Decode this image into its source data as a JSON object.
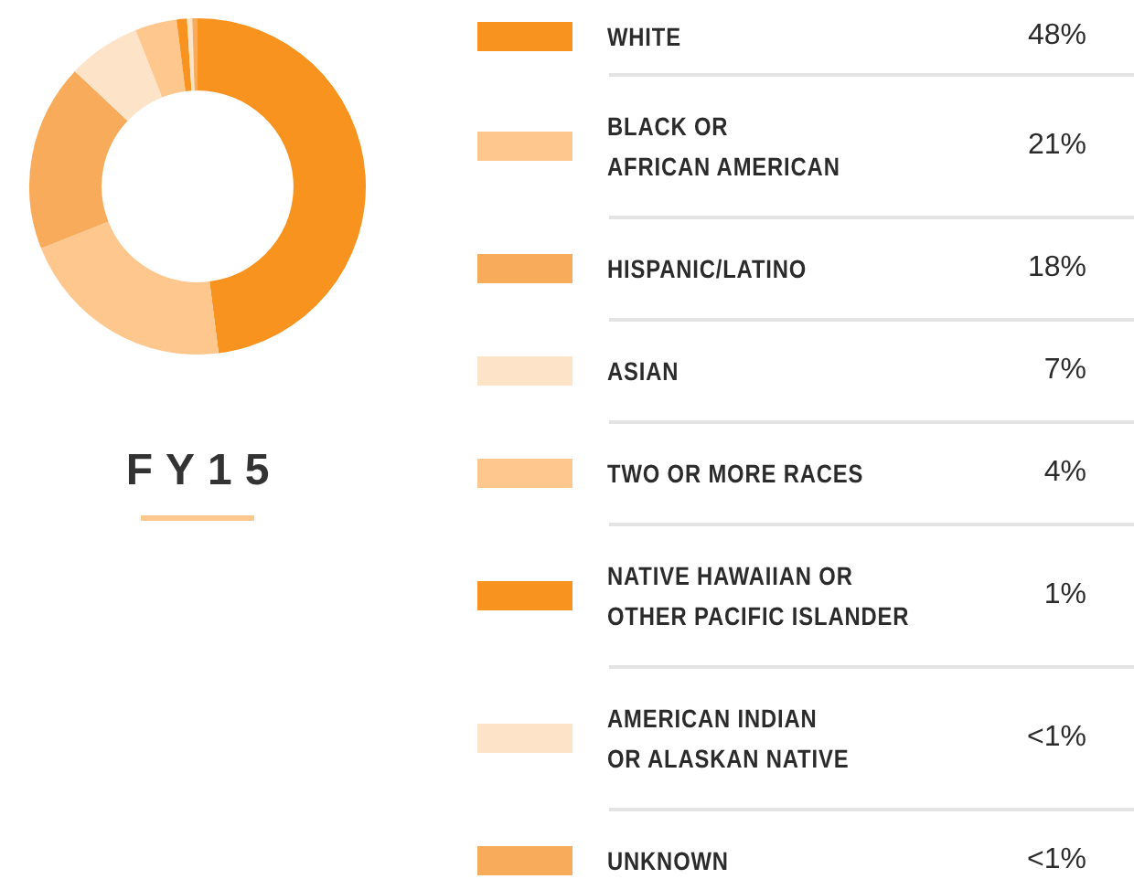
{
  "chart_data": {
    "type": "donut",
    "title": "FY15",
    "categories": [
      "WHITE",
      "BLACK OR\nAFRICAN AMERICAN",
      "HISPANIC/LATINO",
      "ASIAN",
      "TWO OR MORE RACES",
      "NATIVE HAWAIIAN OR\nOTHER PACIFIC ISLANDER",
      "AMERICAN INDIAN\nOR ALASKAN NATIVE",
      "UNKNOWN"
    ],
    "values": [
      48,
      21,
      18,
      7,
      4,
      1,
      0.5,
      0.5
    ],
    "value_labels": [
      "48%",
      "21%",
      "18%",
      "7%",
      "4%",
      "1%",
      "<1%",
      "<1%"
    ],
    "colors": [
      "#f7931e",
      "#fdc78d",
      "#f8ab5a",
      "#fde3c7",
      "#fdc78d",
      "#f7931e",
      "#fde3c7",
      "#f8ab5a"
    ],
    "legend": "right"
  }
}
